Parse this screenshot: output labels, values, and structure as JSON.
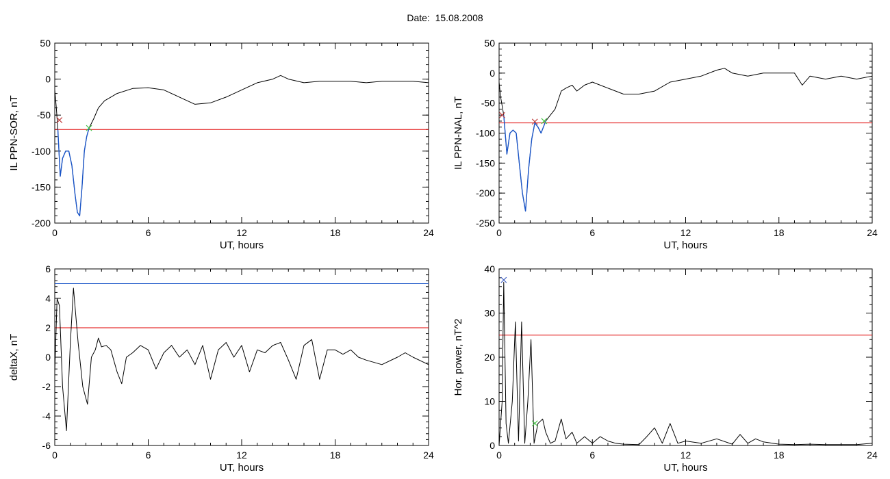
{
  "figure": {
    "date_label": "Date:",
    "date_value": "15.08.2008"
  },
  "chart_data": [
    {
      "type": "line",
      "id": "sor",
      "xlabel": "UT, hours",
      "ylabel": "IL PPN-SOR, nT",
      "xlim": [
        0,
        24
      ],
      "ylim": [
        -200,
        50
      ],
      "xticks": [
        0,
        6,
        12,
        18,
        24
      ],
      "yticks": [
        -200,
        -150,
        -100,
        -50,
        0,
        50
      ],
      "threshold": {
        "y": -70,
        "color": "#e00000"
      },
      "series": [
        {
          "color": "#000000",
          "x": [
            0,
            0.1,
            0.2,
            0.35,
            0.5,
            0.7,
            0.9,
            1.1,
            1.3,
            1.45,
            1.6,
            1.75,
            1.9,
            2.05,
            2.2,
            2.5,
            2.8,
            3.2,
            3.6,
            4,
            5,
            6,
            7,
            8,
            9,
            10,
            11,
            12,
            13,
            14,
            14.5,
            15,
            16,
            17,
            18,
            19,
            20,
            21,
            22,
            23,
            24
          ],
          "y": [
            -15,
            -40,
            -70,
            -135,
            -110,
            -100,
            -100,
            -120,
            -160,
            -185,
            -190,
            -150,
            -100,
            -80,
            -68,
            -55,
            -40,
            -30,
            -25,
            -20,
            -13,
            -12,
            -15,
            -25,
            -35,
            -33,
            -25,
            -15,
            -5,
            0,
            5,
            0,
            -5,
            -3,
            -3,
            -3,
            -5,
            -3,
            -3,
            -3,
            -5
          ]
        },
        {
          "color": "#1a55c8",
          "x": [
            0.2,
            0.35,
            0.5,
            0.7,
            0.9,
            1.1,
            1.3,
            1.45,
            1.6,
            1.75,
            1.9,
            2.05,
            2.2
          ],
          "y": [
            -70,
            -135,
            -110,
            -100,
            -100,
            -120,
            -160,
            -185,
            -190,
            -150,
            -100,
            -80,
            -68
          ]
        }
      ],
      "markers": [
        {
          "x": 0.3,
          "y": -57,
          "color": "#c04040"
        },
        {
          "x": 2.2,
          "y": -68,
          "color": "#40c040"
        }
      ]
    },
    {
      "type": "line",
      "id": "nal",
      "xlabel": "UT, hours",
      "ylabel": "IL PPN-NAL, nT",
      "xlim": [
        0,
        24
      ],
      "ylim": [
        -250,
        50
      ],
      "xticks": [
        0,
        6,
        12,
        18,
        24
      ],
      "yticks": [
        -250,
        -200,
        -150,
        -100,
        -50,
        0,
        50
      ],
      "threshold": {
        "y": -83,
        "color": "#e00000"
      },
      "series": [
        {
          "color": "#000000",
          "x": [
            0,
            0.1,
            0.3,
            0.5,
            0.7,
            0.9,
            1.1,
            1.3,
            1.5,
            1.7,
            1.9,
            2.1,
            2.3,
            2.5,
            2.7,
            3,
            3.3,
            3.6,
            4,
            4.3,
            4.7,
            5,
            5.5,
            6,
            7,
            8,
            9,
            10,
            11,
            12,
            13,
            14,
            14.5,
            15,
            16,
            17,
            18,
            19,
            19.5,
            20,
            21,
            22,
            23,
            24
          ],
          "y": [
            -15,
            -40,
            -70,
            -135,
            -100,
            -95,
            -100,
            -150,
            -200,
            -230,
            -160,
            -110,
            -83,
            -90,
            -100,
            -80,
            -70,
            -60,
            -30,
            -25,
            -20,
            -30,
            -20,
            -15,
            -25,
            -35,
            -35,
            -30,
            -15,
            -10,
            -5,
            5,
            8,
            0,
            -5,
            0,
            0,
            0,
            -20,
            -5,
            -10,
            -5,
            -10,
            -5
          ]
        },
        {
          "color": "#1a55c8",
          "x": [
            0.3,
            0.5,
            0.7,
            0.9,
            1.1,
            1.3,
            1.5,
            1.7,
            1.9,
            2.1,
            2.3,
            2.5,
            2.7,
            3
          ],
          "y": [
            -70,
            -135,
            -100,
            -95,
            -100,
            -150,
            -200,
            -230,
            -160,
            -110,
            -83,
            -90,
            -100,
            -80
          ]
        }
      ],
      "markers": [
        {
          "x": 0.2,
          "y": -70,
          "color": "#c04040"
        },
        {
          "x": 2.3,
          "y": -81,
          "color": "#c04040"
        },
        {
          "x": 2.9,
          "y": -80,
          "color": "#40c040"
        }
      ]
    },
    {
      "type": "line",
      "id": "deltax",
      "xlabel": "UT, hours",
      "ylabel": "deltaX, nT",
      "xlim": [
        0,
        24
      ],
      "ylim": [
        -6,
        6
      ],
      "xticks": [
        0,
        6,
        12,
        18,
        24
      ],
      "yticks": [
        -6,
        -4,
        -2,
        0,
        2,
        4,
        6
      ],
      "threshold": {
        "y": 2,
        "color": "#e00000"
      },
      "threshold2": {
        "y": 5,
        "color": "#1a55c8"
      },
      "series": [
        {
          "color": "#000000",
          "x": [
            0,
            0.15,
            0.3,
            0.5,
            0.75,
            1.0,
            1.2,
            1.5,
            1.8,
            2.1,
            2.35,
            2.6,
            2.8,
            3.0,
            3.3,
            3.6,
            4.0,
            4.3,
            4.6,
            5.0,
            5.5,
            6,
            6.5,
            7,
            7.5,
            8,
            8.5,
            9,
            9.5,
            10,
            10.5,
            11,
            11.5,
            12,
            12.5,
            13,
            13.5,
            14,
            14.5,
            15,
            15.5,
            16,
            16.5,
            17,
            17.5,
            18,
            18.5,
            19,
            19.5,
            20,
            21,
            22,
            22.5,
            23,
            24
          ],
          "y": [
            -1,
            4,
            3.5,
            -2,
            -5,
            1,
            4.7,
            1,
            -2,
            -3.2,
            0,
            0.5,
            1.3,
            0.7,
            0.8,
            0.5,
            -1,
            -1.8,
            0,
            0.3,
            0.8,
            0.5,
            -0.8,
            0.3,
            0.8,
            0,
            0.5,
            -0.5,
            0.8,
            -1.5,
            0.5,
            1,
            0,
            0.8,
            -1,
            0.5,
            0.3,
            0.8,
            1,
            -0.2,
            -1.5,
            0.8,
            1.2,
            -1.5,
            0.5,
            0.5,
            0.2,
            0.5,
            0,
            -0.2,
            -0.5,
            0,
            0.3,
            0,
            -0.5
          ]
        }
      ],
      "markers": []
    },
    {
      "type": "line",
      "id": "power",
      "xlabel": "UT, hours",
      "ylabel": "Hor. power, nT^2",
      "xlim": [
        0,
        24
      ],
      "ylim": [
        0,
        40
      ],
      "xticks": [
        0,
        6,
        12,
        18,
        24
      ],
      "yticks": [
        0,
        10,
        20,
        30,
        40
      ],
      "threshold": {
        "y": 25,
        "color": "#e00000"
      },
      "series": [
        {
          "color": "#000000",
          "x": [
            0,
            0.2,
            0.3,
            0.45,
            0.6,
            0.85,
            1.05,
            1.25,
            1.45,
            1.65,
            1.85,
            2.05,
            2.25,
            2.5,
            2.8,
            3.0,
            3.3,
            3.6,
            4.0,
            4.3,
            4.7,
            5,
            5.5,
            6,
            6.5,
            7,
            7.5,
            8,
            9,
            9.5,
            10,
            10.5,
            11,
            11.5,
            12,
            13,
            14,
            15,
            15.5,
            16,
            16.5,
            17,
            18,
            19,
            20,
            21,
            22,
            23,
            24
          ],
          "y": [
            0,
            10,
            37,
            5,
            0.5,
            10,
            28,
            1,
            28,
            0.5,
            10,
            24,
            0.5,
            5,
            6,
            3,
            0.5,
            1,
            6,
            1.5,
            3,
            0.5,
            2,
            0.5,
            2,
            1,
            0.5,
            0.3,
            0.2,
            2,
            4,
            0.5,
            5,
            0.5,
            1,
            0.5,
            1.5,
            0.3,
            2.5,
            0.5,
            1.5,
            0.8,
            0.3,
            0.2,
            0.3,
            0.2,
            0.2,
            0.2,
            0.5
          ]
        }
      ],
      "markers": [
        {
          "x": 0.3,
          "y": 37.5,
          "color": "#4060c0"
        },
        {
          "x": 2.3,
          "y": 5,
          "color": "#40c040"
        }
      ]
    }
  ]
}
